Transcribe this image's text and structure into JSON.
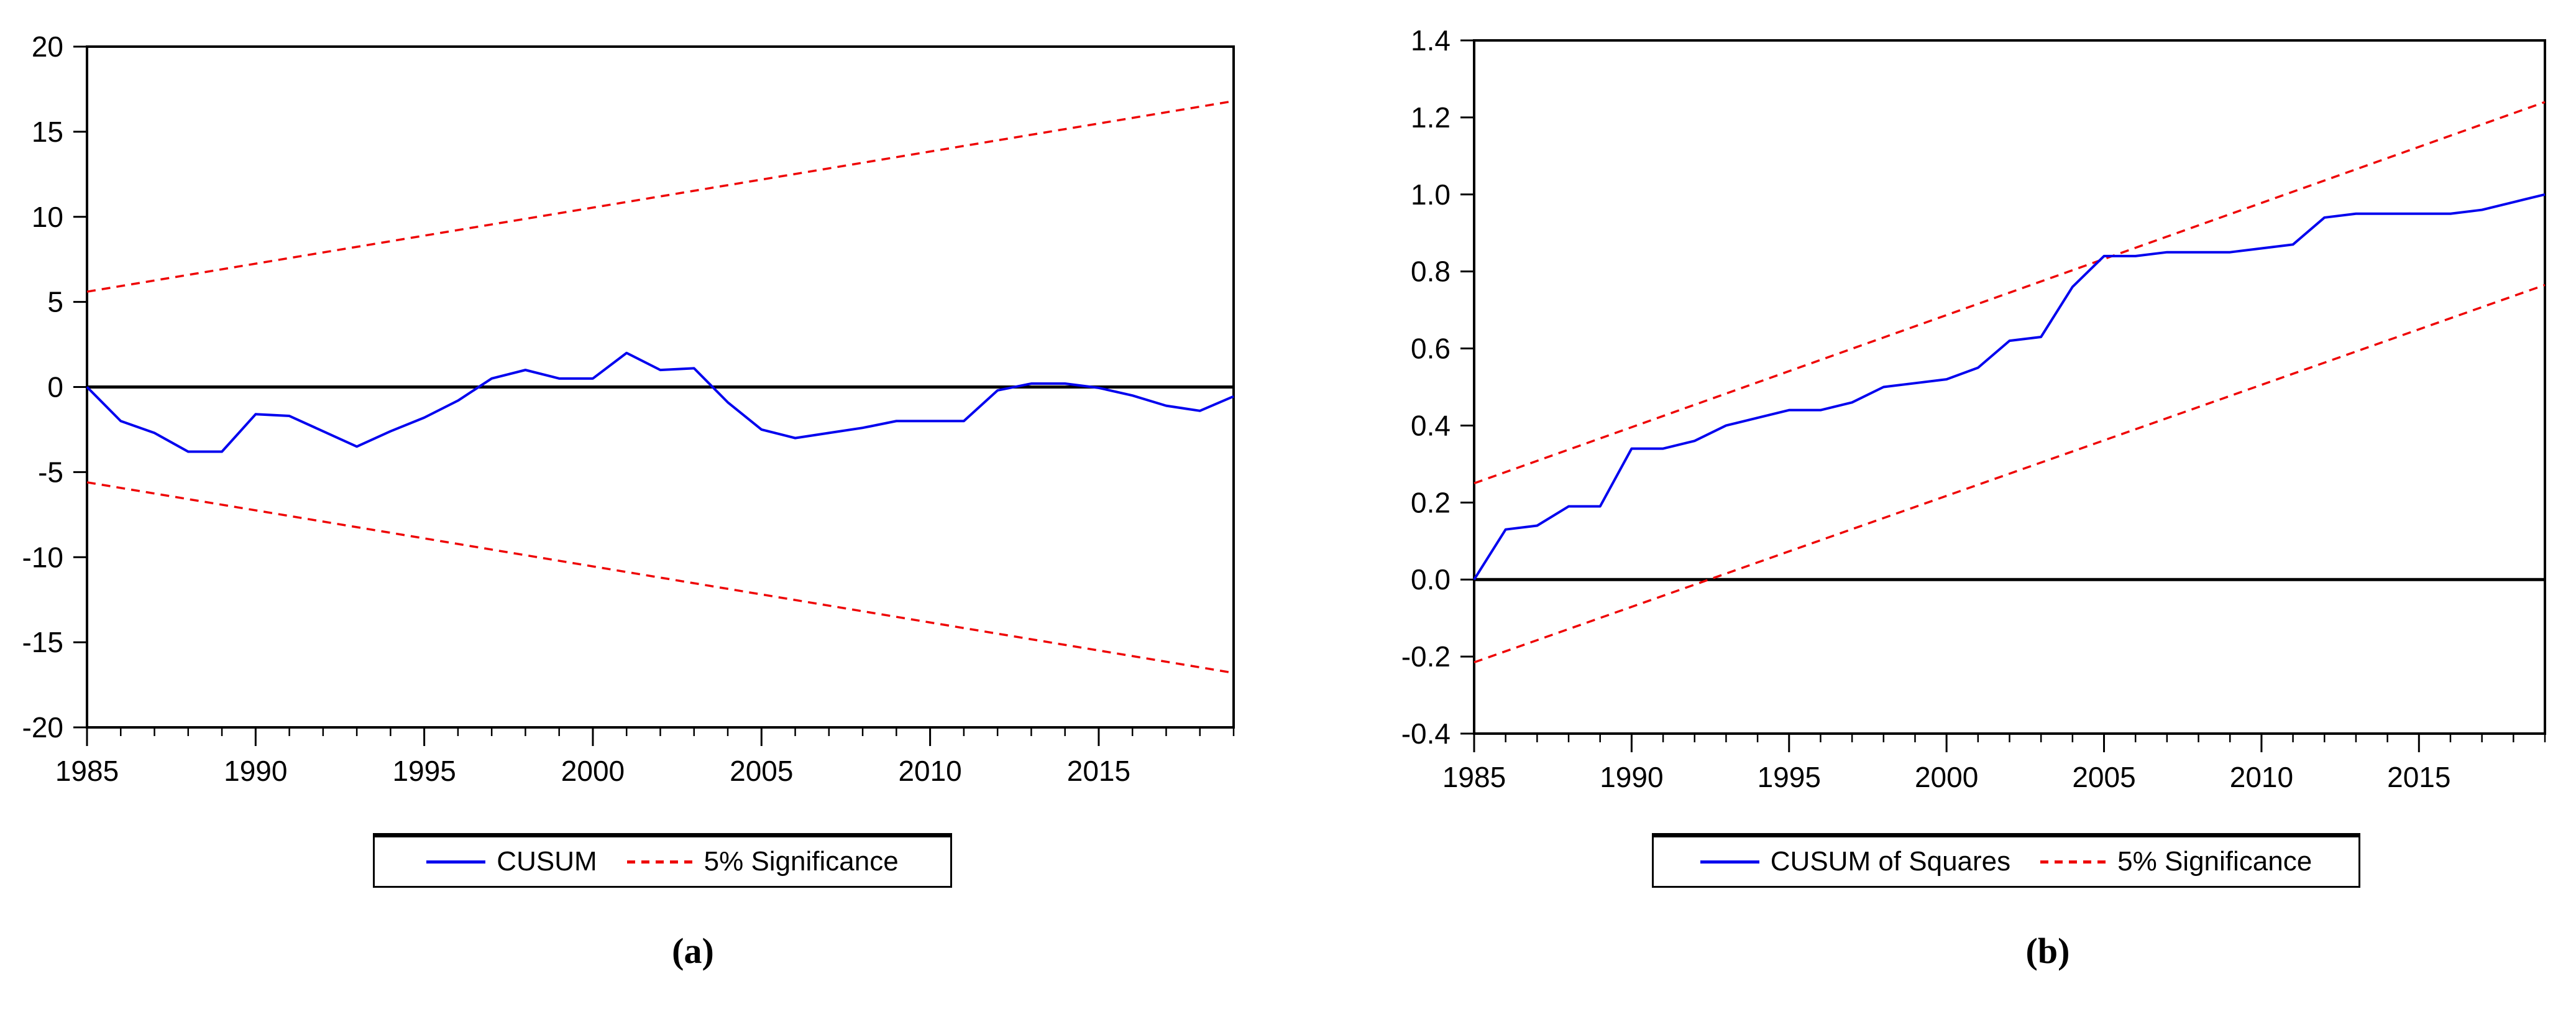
{
  "colors": {
    "series_blue": "#0202EE",
    "band_red": "#EE0404",
    "axis_black": "#000000",
    "background": "#FFFFFF"
  },
  "panels": [
    {
      "caption": "(a)"
    },
    {
      "caption": "(b)"
    }
  ],
  "chart_data": [
    {
      "type": "line",
      "title": "",
      "xlabel": "",
      "ylabel": "",
      "xlim": [
        1985,
        2019
      ],
      "ylim": [
        -20,
        20
      ],
      "grid": false,
      "zero_line": true,
      "legend_position": "bottom",
      "legend": [
        "CUSUM",
        "5% Significance"
      ],
      "xticks_labeled": [
        1985,
        1990,
        1995,
        2000,
        2005,
        2010,
        2015
      ],
      "xminor_step": 1,
      "yticks": [
        {
          "v": 20,
          "label": "20"
        },
        {
          "v": 15,
          "label": "15"
        },
        {
          "v": 10,
          "label": "10"
        },
        {
          "v": 5,
          "label": "5"
        },
        {
          "v": 0,
          "label": "0"
        },
        {
          "v": -5,
          "label": "-5"
        },
        {
          "v": -10,
          "label": "-10"
        },
        {
          "v": -15,
          "label": "-15"
        },
        {
          "v": -20,
          "label": "-20"
        }
      ],
      "x": [
        1985,
        1986,
        1987,
        1988,
        1989,
        1990,
        1991,
        1992,
        1993,
        1994,
        1995,
        1996,
        1997,
        1998,
        1999,
        2000,
        2001,
        2002,
        2003,
        2004,
        2005,
        2006,
        2007,
        2008,
        2009,
        2010,
        2011,
        2012,
        2013,
        2014,
        2015,
        2016,
        2017,
        2018,
        2019
      ],
      "series": [
        {
          "name": "CUSUM",
          "style": "solid",
          "values": [
            0,
            -2.0,
            -2.7,
            -3.8,
            -3.8,
            -1.6,
            -1.7,
            -2.6,
            -3.5,
            -2.6,
            -1.8,
            -0.8,
            0.5,
            1.0,
            0.5,
            0.5,
            2.0,
            1.0,
            1.1,
            -0.9,
            -2.5,
            -3.0,
            -2.7,
            -2.4,
            -2.0,
            -2.0,
            -2.0,
            -0.2,
            0.2,
            0.2,
            -0.05,
            -0.5,
            -1.1,
            -1.4,
            -0.55
          ]
        }
      ],
      "bands": [
        {
          "name": "5% Significance (upper)",
          "style": "dashed",
          "x": [
            1985,
            2019
          ],
          "values": [
            5.6,
            16.8
          ]
        },
        {
          "name": "5% Significance (lower)",
          "style": "dashed",
          "x": [
            1985,
            2019
          ],
          "values": [
            -5.6,
            -16.8
          ]
        }
      ]
    },
    {
      "type": "line",
      "title": "",
      "xlabel": "",
      "ylabel": "",
      "xlim": [
        1985,
        2019
      ],
      "ylim": [
        -0.4,
        1.4
      ],
      "grid": false,
      "zero_line": true,
      "legend_position": "bottom",
      "legend": [
        "CUSUM of Squares",
        "5% Significance"
      ],
      "xticks_labeled": [
        1985,
        1990,
        1995,
        2000,
        2005,
        2010,
        2015
      ],
      "xminor_step": 1,
      "yticks": [
        {
          "v": 1.4,
          "label": "1.4"
        },
        {
          "v": 1.2,
          "label": "1.2"
        },
        {
          "v": 1.0,
          "label": "1.0"
        },
        {
          "v": 0.8,
          "label": "0.8"
        },
        {
          "v": 0.6,
          "label": "0.6"
        },
        {
          "v": 0.4,
          "label": "0.4"
        },
        {
          "v": 0.2,
          "label": "0.2"
        },
        {
          "v": 0.0,
          "label": "0.0"
        },
        {
          "v": -0.2,
          "label": "-0.2"
        },
        {
          "v": -0.4,
          "label": "-0.4"
        }
      ],
      "x": [
        1985,
        1986,
        1987,
        1988,
        1989,
        1990,
        1991,
        1992,
        1993,
        1994,
        1995,
        1996,
        1997,
        1998,
        1999,
        2000,
        2001,
        2002,
        2003,
        2004,
        2005,
        2006,
        2007,
        2008,
        2009,
        2010,
        2011,
        2012,
        2013,
        2014,
        2015,
        2016,
        2017,
        2018,
        2019
      ],
      "series": [
        {
          "name": "CUSUM of Squares",
          "style": "solid",
          "values": [
            0,
            0.13,
            0.14,
            0.19,
            0.19,
            0.34,
            0.34,
            0.36,
            0.4,
            0.42,
            0.44,
            0.44,
            0.46,
            0.5,
            0.51,
            0.52,
            0.55,
            0.62,
            0.63,
            0.76,
            0.84,
            0.84,
            0.85,
            0.85,
            0.85,
            0.86,
            0.87,
            0.94,
            0.95,
            0.95,
            0.95,
            0.95,
            0.96,
            0.98,
            1.0
          ]
        }
      ],
      "bands": [
        {
          "name": "5% Significance (upper)",
          "style": "dashed",
          "x": [
            1985,
            2019
          ],
          "values": [
            0.25,
            1.24
          ]
        },
        {
          "name": "5% Significance (lower)",
          "style": "dashed",
          "x": [
            1985,
            2019
          ],
          "values": [
            -0.215,
            0.765
          ]
        }
      ]
    }
  ]
}
